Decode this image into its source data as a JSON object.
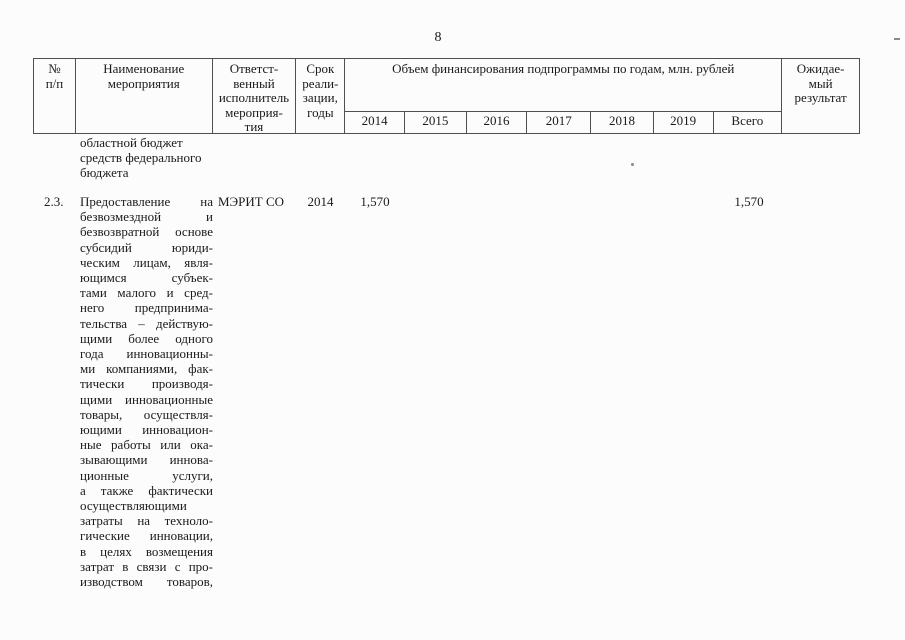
{
  "page": {
    "number": "8"
  },
  "colors": {
    "background": "#fcfcfc",
    "text": "#1a1a1a",
    "border": "#4f4f4f"
  },
  "table": {
    "header": {
      "num_lines": [
        "№",
        "п/п"
      ],
      "name_lines": [
        "Наименование",
        "мероприятия"
      ],
      "executor_lines": [
        "Ответст-",
        "венный",
        "исполнитель",
        "мероприя-",
        "тия"
      ],
      "term_lines": [
        "Срок",
        "реали-",
        "зации,",
        "годы"
      ],
      "financing_title": "Объем финансирования подпрограммы по годам, млн. рублей",
      "year_columns": [
        "2014",
        "2015",
        "2016",
        "2017",
        "2018",
        "2019",
        "Всего"
      ],
      "expected_lines": [
        "Ожидае-",
        "мый",
        "результат"
      ]
    },
    "body": {
      "carryover_lines": [
        "областной бюджет",
        "средств федерального",
        "бюджета"
      ],
      "row_2_3": {
        "num": "2.3.",
        "name_lines": [
          "Предоставление на",
          "безвозмездной и",
          "безвозвратной основе",
          "субсидий юриди-",
          "ческим лицам, явля-",
          "ющимся субъек-",
          "тами малого и сред-",
          "него предпринима-",
          "тельства – действую-",
          "щими более одного",
          "года инновационны-",
          "ми компаниями, фак-",
          "тически производя-",
          "щими инновационные",
          "товары, осуществля-",
          "ющими инновацион-",
          "ные работы или ока-",
          "зывающими иннова-",
          "ционные услуги,",
          "а также фактически",
          "осуществляющими",
          "затраты на техноло-",
          "гические инновации,",
          "в целях возмещения",
          "затрат в связи с про-",
          "изводством товаров,"
        ],
        "executor": "МЭРИТ СО",
        "term": "2014",
        "value_2014": "1,570",
        "value_total": "1,570"
      }
    }
  }
}
